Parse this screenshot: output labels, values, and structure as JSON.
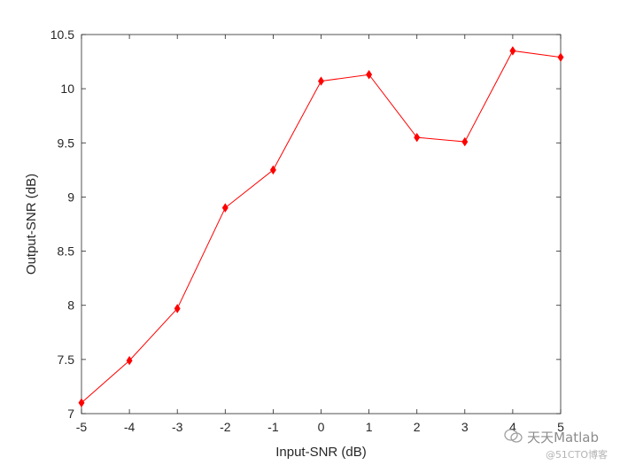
{
  "chart_data": {
    "type": "line",
    "title": "",
    "xlabel": "Input-SNR (dB)",
    "ylabel": "Output-SNR (dB)",
    "xlim": [
      -5,
      5
    ],
    "ylim": [
      7,
      10.5
    ],
    "xticks": [
      "-5",
      "-4",
      "-3",
      "-2",
      "-1",
      "0",
      "1",
      "2",
      "3",
      "4",
      "5"
    ],
    "yticks": [
      "7",
      "7.5",
      "8",
      "8.5",
      "9",
      "9.5",
      "10",
      "10.5"
    ],
    "grid": false,
    "series": [
      {
        "color": "#ff0000",
        "marker": "diamond",
        "x": [
          -5,
          -4,
          -3,
          -2,
          -1,
          0,
          1,
          2,
          3,
          4,
          5
        ],
        "y": [
          7.1,
          7.49,
          7.97,
          8.9,
          9.25,
          10.07,
          10.13,
          9.55,
          9.51,
          10.35,
          10.29
        ]
      }
    ]
  },
  "watermark": {
    "main": "天天Matlab",
    "sub": "@51CTO博客",
    "icon": "wechat-icon"
  }
}
